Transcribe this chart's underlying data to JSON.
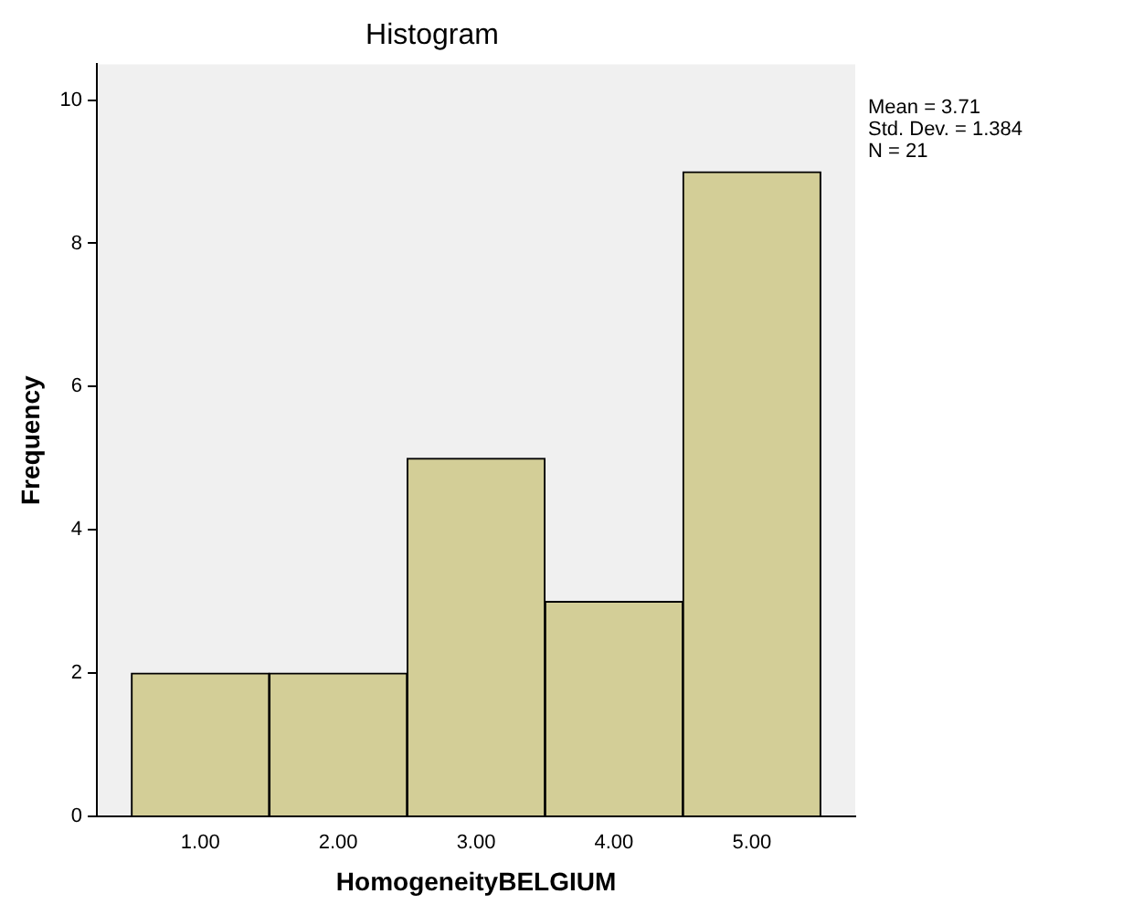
{
  "chart_data": {
    "type": "histogram",
    "title": "Histogram",
    "xlabel": "HomogeneityBELGIUM",
    "ylabel": "Frequency",
    "bins": [
      0.5,
      1.5,
      2.5,
      3.5,
      4.5,
      5.5
    ],
    "values": [
      2,
      2,
      5,
      3,
      9
    ],
    "color": "#d3ce97",
    "xlim": [
      0.25,
      5.75
    ],
    "xticks": [
      {
        "value": 1,
        "label": "1.00"
      },
      {
        "value": 2,
        "label": "2.00"
      },
      {
        "value": 3,
        "label": "3.00"
      },
      {
        "value": 4,
        "label": "4.00"
      },
      {
        "value": 5,
        "label": "5.00"
      }
    ],
    "ylim": [
      0,
      10.5
    ],
    "yticks": [
      0,
      2,
      4,
      6,
      8,
      10
    ],
    "grid": false,
    "legend": false,
    "annotations": [
      "Mean = 3.71",
      "Std. Dev. = 1.384",
      "N = 21"
    ]
  }
}
